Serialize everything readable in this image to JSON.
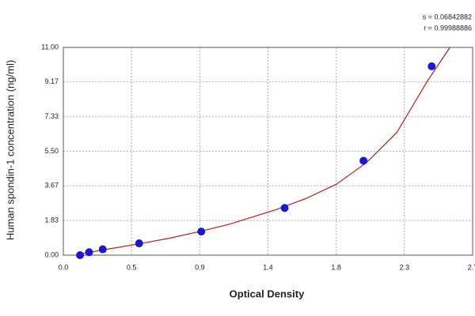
{
  "chart_data": {
    "type": "scatter",
    "x_label": "Optical Density",
    "y_label": "Human spondin-1 concentration (ng/ml)",
    "stats": [
      "s = 0.06842882",
      "r = 0.99988886"
    ],
    "x": [
      0.11,
      0.17,
      0.26,
      0.5,
      0.91,
      1.46,
      1.98,
      2.43
    ],
    "values": [
      0,
      0.156,
      0.312,
      0.625,
      1.25,
      2.5,
      5,
      10
    ],
    "color": "#1a1acc",
    "fit": {
      "color": "#b22222",
      "x": [
        0.1,
        0.3,
        0.5,
        0.7,
        0.9,
        1.1,
        1.4,
        1.6,
        1.8,
        2.0,
        2.2,
        2.4,
        2.55
      ],
      "values": [
        0.05,
        0.33,
        0.6,
        0.9,
        1.25,
        1.65,
        2.4,
        3.0,
        3.75,
        4.9,
        6.5,
        9.2,
        11
      ]
    },
    "xlim": [
      0,
      2.7
    ],
    "xticks": [
      {
        "value": 0,
        "label": "0.0"
      },
      {
        "value": 0.45,
        "label": "0.5"
      },
      {
        "value": 0.9,
        "label": "0.9"
      },
      {
        "value": 1.35,
        "label": "1.4"
      },
      {
        "value": 1.8,
        "label": "1.8"
      },
      {
        "value": 2.25,
        "label": "2.3"
      },
      {
        "value": 2.7,
        "label": "2.7"
      }
    ],
    "ylim": [
      0,
      11
    ],
    "yticks": [
      {
        "value": 0,
        "label": "0.00"
      },
      1.83,
      3.67,
      {
        "value": 5.5,
        "label": "5.50"
      },
      7.33,
      9.17,
      {
        "value": 11,
        "label": "11.00"
      }
    ],
    "grid": true
  }
}
